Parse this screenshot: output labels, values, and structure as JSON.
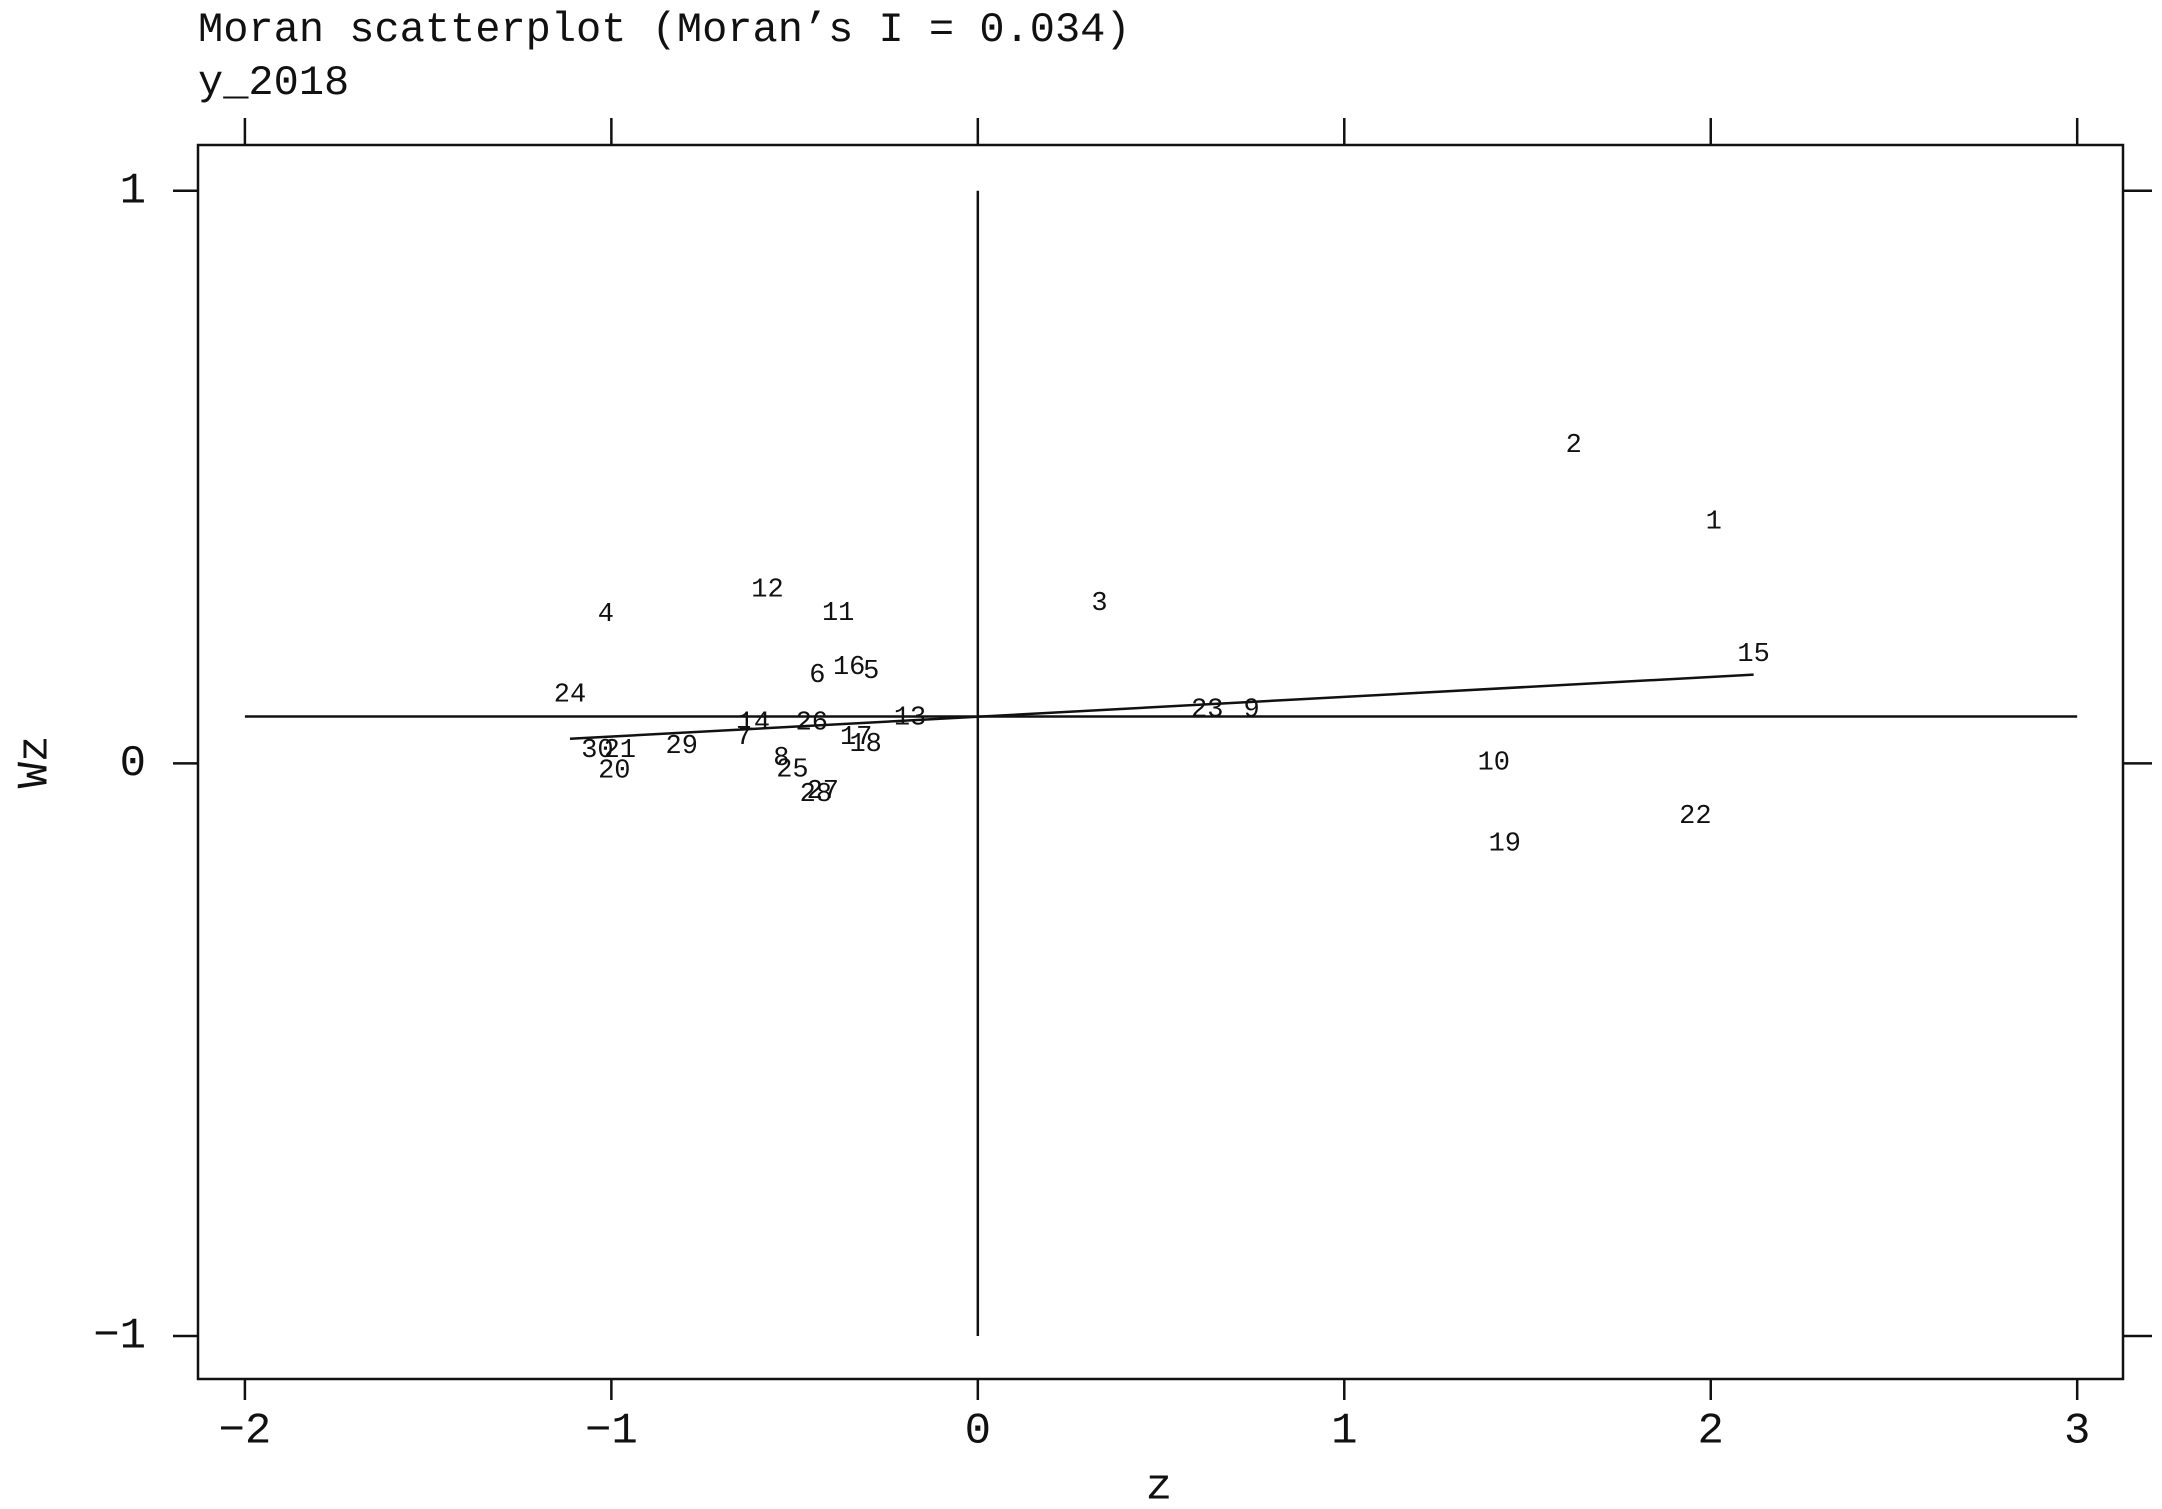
{
  "chart_data": {
    "type": "scatter",
    "title": "Moran scatterplot (Moran’s I = 0.034)",
    "subtitle": "y_2018",
    "x_label": "z",
    "y_label": "Wz",
    "xlim": [
      -2.128,
      3.125
    ],
    "ylim": [
      -1.075,
      1.08
    ],
    "xticks": [
      {
        "value": -2,
        "label": "−2"
      },
      {
        "value": -1,
        "label": "−1"
      },
      0,
      1,
      2,
      3
    ],
    "yticks": [
      {
        "value": -1,
        "label": "−1"
      },
      0,
      1
    ],
    "point_labels": [
      "2",
      "1",
      "15",
      "3",
      "4",
      "12",
      "11",
      "6",
      "16",
      "5",
      "24",
      "14",
      "26",
      "13",
      "23",
      "9",
      "7",
      "17",
      "18",
      "29",
      "30",
      "21",
      "8",
      "25",
      "20",
      "28",
      "27",
      "10",
      "22",
      "19"
    ],
    "x": [
      1.626,
      2.008,
      2.117,
      0.332,
      -1.015,
      -0.574,
      -0.381,
      -0.438,
      -0.351,
      -0.291,
      -1.113,
      -0.611,
      -0.453,
      -0.185,
      0.626,
      0.747,
      -0.638,
      -0.332,
      -0.306,
      -0.808,
      -1.038,
      -0.977,
      -0.536,
      -0.506,
      -0.992,
      -0.442,
      -0.423,
      1.408,
      1.958,
      1.438
    ],
    "values": [
      0.556,
      0.423,
      0.191,
      0.28,
      0.261,
      0.304,
      0.263,
      0.155,
      0.169,
      0.162,
      0.121,
      0.072,
      0.072,
      0.08,
      0.094,
      0.094,
      0.046,
      0.046,
      0.034,
      0.031,
      0.024,
      0.024,
      0.01,
      -0.01,
      -0.012,
      -0.053,
      -0.048,
      0.002,
      -0.092,
      -0.14
    ],
    "hline": 0.082,
    "vline": 0,
    "regression_line": {
      "x": [
        -1.113,
        2.117
      ],
      "y": [
        0.043,
        0.155
      ]
    }
  }
}
